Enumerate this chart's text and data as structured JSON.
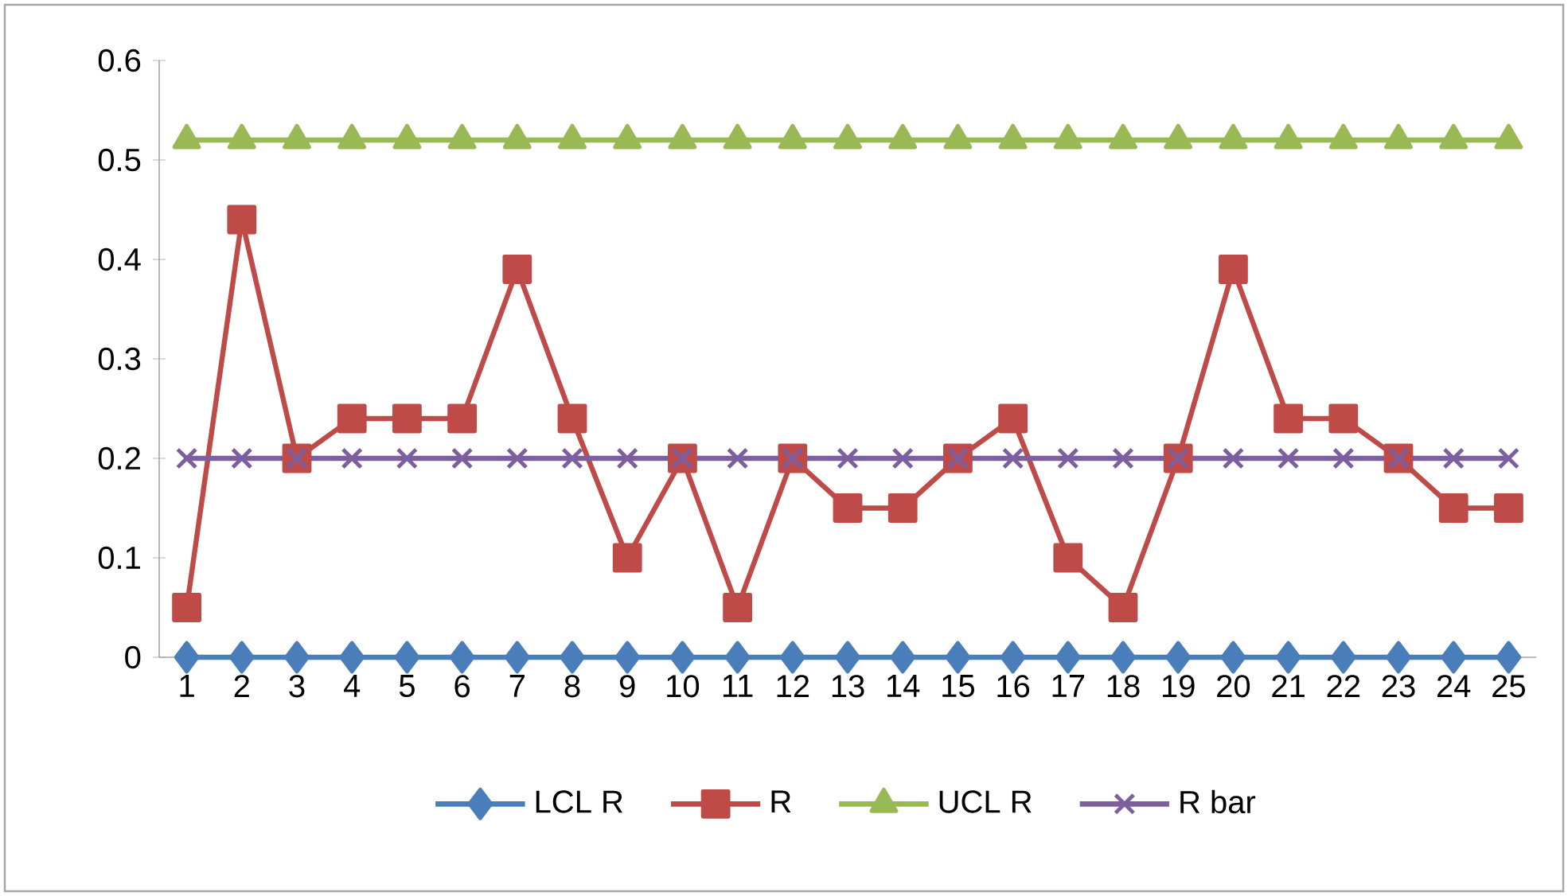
{
  "chart_data": {
    "type": "line",
    "categories": [
      "1",
      "2",
      "3",
      "4",
      "5",
      "6",
      "7",
      "8",
      "9",
      "10",
      "11",
      "12",
      "13",
      "14",
      "15",
      "16",
      "17",
      "18",
      "19",
      "20",
      "21",
      "22",
      "23",
      "24",
      "25"
    ],
    "series": [
      {
        "name": "LCL R",
        "color": "#4a7ebb",
        "marker": "diamond",
        "values": [
          0,
          0,
          0,
          0,
          0,
          0,
          0,
          0,
          0,
          0,
          0,
          0,
          0,
          0,
          0,
          0,
          0,
          0,
          0,
          0,
          0,
          0,
          0,
          0,
          0
        ]
      },
      {
        "name": "R",
        "color": "#be4b48",
        "marker": "square",
        "values": [
          0.05,
          0.44,
          0.2,
          0.24,
          0.24,
          0.24,
          0.39,
          0.24,
          0.1,
          0.2,
          0.05,
          0.2,
          0.15,
          0.15,
          0.2,
          0.24,
          0.1,
          0.05,
          0.2,
          0.39,
          0.24,
          0.24,
          0.2,
          0.15,
          0.15
        ]
      },
      {
        "name": "UCL R",
        "color": "#98b954",
        "marker": "triangle",
        "values": [
          0.52,
          0.52,
          0.52,
          0.52,
          0.52,
          0.52,
          0.52,
          0.52,
          0.52,
          0.52,
          0.52,
          0.52,
          0.52,
          0.52,
          0.52,
          0.52,
          0.52,
          0.52,
          0.52,
          0.52,
          0.52,
          0.52,
          0.52,
          0.52,
          0.52
        ]
      },
      {
        "name": "R bar",
        "color": "#7d5fa0",
        "marker": "cross",
        "values": [
          0.2,
          0.2,
          0.2,
          0.2,
          0.2,
          0.2,
          0.2,
          0.2,
          0.2,
          0.2,
          0.2,
          0.2,
          0.2,
          0.2,
          0.2,
          0.2,
          0.2,
          0.2,
          0.2,
          0.2,
          0.2,
          0.2,
          0.2,
          0.2,
          0.2
        ]
      }
    ],
    "ylim": [
      0,
      0.6
    ],
    "yticks": [
      0,
      0.1,
      0.2,
      0.3,
      0.4,
      0.5,
      0.6
    ],
    "grid": false,
    "legend": "bottom",
    "line_style": "solid"
  }
}
